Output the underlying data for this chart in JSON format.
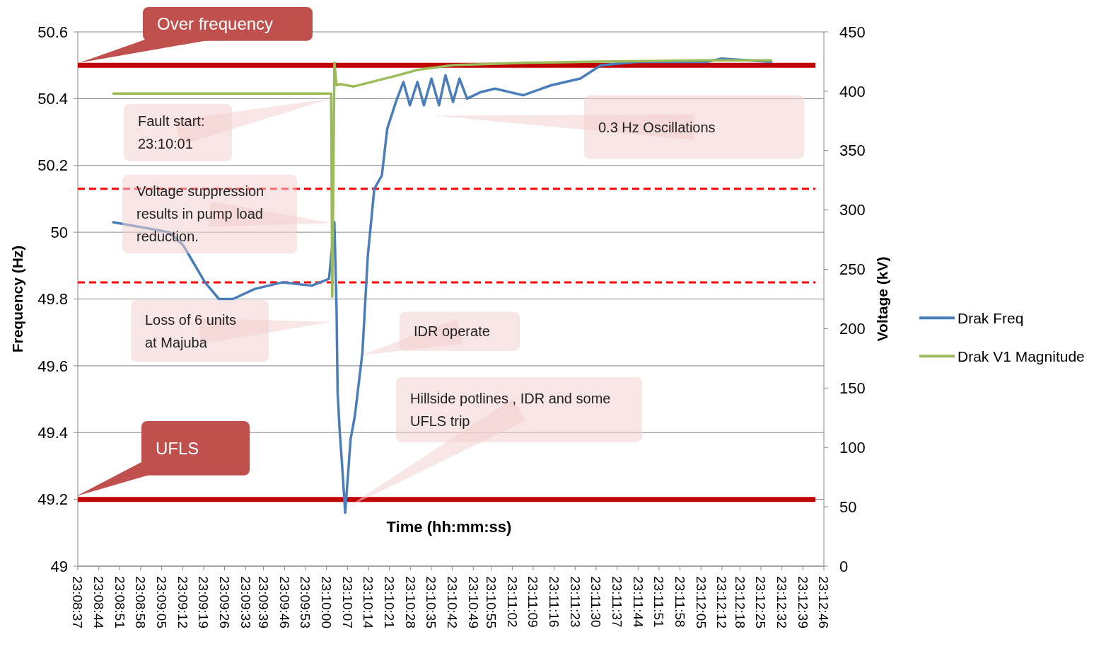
{
  "chart_data": {
    "type": "line",
    "xlabel": "Time (hh:mm:ss)",
    "ylabel": "Frequency (Hz)",
    "y2label": "Voltage (kV)",
    "annotations": [
      "Over frequency",
      "UFLS",
      "Fault start: 23:10:01",
      "Voltage suppression results in pump load reduction.",
      "Loss of  6 units at Majuba",
      "IDR operate",
      "Hillside potlines , IDR and  some UFLS trip",
      "0.3 Hz Oscillations"
    ],
    "xlim": [
      23.14361,
      23.21278
    ],
    "xticks": [
      {
        "value": 23.14361,
        "label": "23:08:37"
      },
      {
        "value": 23.14556,
        "label": "23:08:44"
      },
      {
        "value": 23.1475,
        "label": "23:08:51"
      },
      {
        "value": 23.14944,
        "label": "23:08:58"
      },
      {
        "value": 23.15139,
        "label": "23:09:05"
      },
      {
        "value": 23.15333,
        "label": "23:09:12"
      },
      {
        "value": 23.15528,
        "label": "23:09:19"
      },
      {
        "value": 23.15722,
        "label": "23:09:26"
      },
      {
        "value": 23.15917,
        "label": "23:09:33"
      },
      {
        "value": 23.16083,
        "label": "23:09:39"
      },
      {
        "value": 23.16278,
        "label": "23:09:46"
      },
      {
        "value": 23.16472,
        "label": "23:09:53"
      },
      {
        "value": 23.16667,
        "label": "23:10:00"
      },
      {
        "value": 23.16861,
        "label": "23:10:07"
      },
      {
        "value": 23.17056,
        "label": "23:10:14"
      },
      {
        "value": 23.1725,
        "label": "23:10:21"
      },
      {
        "value": 23.17444,
        "label": "23:10:28"
      },
      {
        "value": 23.17639,
        "label": "23:10:35"
      },
      {
        "value": 23.17833,
        "label": "23:10:42"
      },
      {
        "value": 23.18028,
        "label": "23:10:49"
      },
      {
        "value": 23.18194,
        "label": "23:10:55"
      },
      {
        "value": 23.18389,
        "label": "23:11:02"
      },
      {
        "value": 23.18583,
        "label": "23:11:09"
      },
      {
        "value": 23.18778,
        "label": "23:11:16"
      },
      {
        "value": 23.18972,
        "label": "23:11:23"
      },
      {
        "value": 23.19167,
        "label": "23:11:30"
      },
      {
        "value": 23.19361,
        "label": "23:11:37"
      },
      {
        "value": 23.19556,
        "label": "23:11:44"
      },
      {
        "value": 23.1975,
        "label": "23:11:51"
      },
      {
        "value": 23.19944,
        "label": "23:11:58"
      },
      {
        "value": 23.20139,
        "label": "23:12:05"
      },
      {
        "value": 23.20333,
        "label": "23:12:12"
      },
      {
        "value": 23.205,
        "label": "23:12:18"
      },
      {
        "value": 23.20694,
        "label": "23:12:25"
      },
      {
        "value": 23.20889,
        "label": "23:12:32"
      },
      {
        "value": 23.21083,
        "label": "23:12:39"
      },
      {
        "value": 23.21278,
        "label": "23:12:46"
      }
    ],
    "ylim": [
      49,
      50.6
    ],
    "yticks": [
      49,
      49.2,
      49.4,
      49.6,
      49.8,
      50,
      50.2,
      50.4,
      50.6
    ],
    "y2lim": [
      0,
      450
    ],
    "y2ticks": [
      0,
      50,
      100,
      150,
      200,
      250,
      300,
      350,
      400,
      450
    ],
    "grid": "y",
    "legend": "right",
    "ref_lines": [
      {
        "axis": "y",
        "value": 50.5,
        "color": "#c00000",
        "line_style": "solid"
      },
      {
        "axis": "y",
        "value": 49.2,
        "color": "#c00000",
        "line_style": "solid"
      },
      {
        "axis": "y",
        "value": 50.13,
        "color": "#ff0000",
        "line_style": "dashed"
      },
      {
        "axis": "y",
        "value": 49.85,
        "color": "#ff0000",
        "line_style": "dashed"
      }
    ],
    "series": [
      {
        "name": "Drak Freq",
        "color": "#4a7ebb",
        "x": [
          23.1469,
          23.1521,
          23.1534,
          23.1554,
          23.1567,
          23.158,
          23.16,
          23.1626,
          23.1653,
          23.1669,
          23.1674,
          23.1676,
          23.1677,
          23.1679,
          23.1681,
          23.1684,
          23.1687,
          23.1689,
          23.1693,
          23.17,
          23.1705,
          23.1711,
          23.1718,
          23.1723,
          23.1731,
          23.1738,
          23.1744,
          23.1751,
          23.1757,
          23.1764,
          23.1771,
          23.1777,
          23.1784,
          23.179,
          23.1797,
          23.181,
          23.1823,
          23.1849,
          23.1875,
          23.1902,
          23.1921,
          23.1954,
          23.2019,
          23.2033,
          23.2079
        ],
        "values": [
          50.03,
          50.0,
          49.96,
          49.85,
          49.8,
          49.8,
          49.83,
          49.85,
          49.84,
          49.86,
          50.03,
          49.77,
          49.52,
          49.4,
          49.31,
          49.16,
          49.29,
          49.38,
          49.45,
          49.64,
          49.93,
          50.13,
          50.17,
          50.31,
          50.39,
          50.45,
          50.38,
          50.45,
          50.38,
          50.46,
          50.38,
          50.47,
          50.39,
          50.46,
          50.4,
          50.42,
          50.43,
          50.41,
          50.44,
          50.46,
          50.5,
          50.51,
          50.51,
          50.52,
          50.51
        ]
      },
      {
        "name": "Drak V1 Magnitude",
        "color": "#9bbb59",
        "axis": "y2",
        "x": [
          23.1469,
          23.1671,
          23.1672,
          23.1674,
          23.1676,
          23.1679,
          23.1692,
          23.1705,
          23.1731,
          23.1751,
          23.1784,
          23.1856,
          23.1921,
          23.2019,
          23.2079
        ],
        "values": [
          398,
          398,
          227,
          424,
          405,
          406,
          404,
          407,
          413,
          418,
          422,
          424,
          425,
          426,
          426
        ]
      }
    ]
  }
}
